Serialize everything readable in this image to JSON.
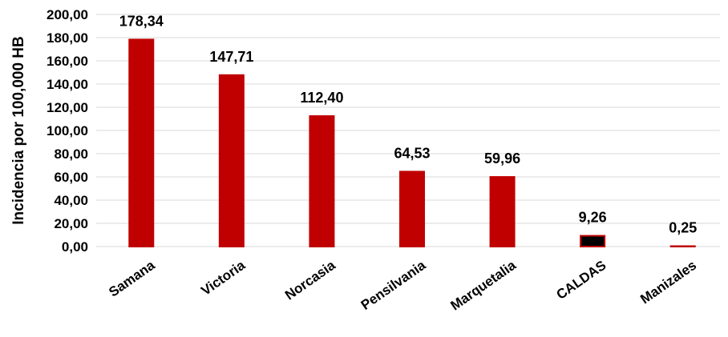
{
  "chart_data": {
    "type": "bar",
    "ylabel": "Incidencia por 100,000 HB",
    "xlabel": "",
    "title": "",
    "ylim": [
      0,
      200
    ],
    "ytick_step": 20,
    "yticks": [
      "0,00",
      "20,00",
      "40,00",
      "60,00",
      "80,00",
      "100,00",
      "120,00",
      "140,00",
      "160,00",
      "180,00",
      "200,00"
    ],
    "grid": true,
    "legend": "none",
    "categories": [
      "Samana",
      "Victoria",
      "Norcasia",
      "Pensilvania",
      "Marquetalia",
      "CALDAS",
      "Manizales"
    ],
    "values": [
      178.34,
      147.71,
      112.4,
      64.53,
      59.96,
      9.26,
      0.25
    ],
    "value_labels": [
      "178,34",
      "147,71",
      "112,40",
      "64,53",
      "59,96",
      "9,26",
      "0,25"
    ],
    "colors": [
      "#c00000",
      "#c00000",
      "#c00000",
      "#c00000",
      "#c00000",
      "#000000",
      "#c00000"
    ],
    "border_colors": [
      "#c00000",
      "#c00000",
      "#c00000",
      "#c00000",
      "#c00000",
      "#c00000",
      "#c00000"
    ]
  }
}
